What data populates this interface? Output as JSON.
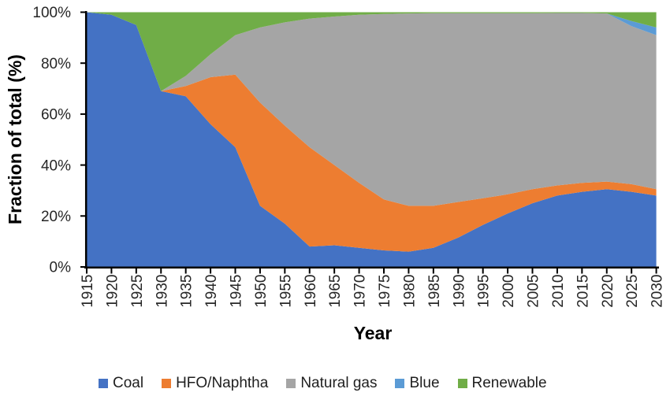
{
  "chart_data": {
    "type": "area",
    "stacked": true,
    "stacking": "percent",
    "title": "",
    "xlabel": "Year",
    "ylabel": "Fraction of total (%)",
    "ylim": [
      0,
      100
    ],
    "grid": false,
    "legend_position": "bottom",
    "axis_color": "#000000",
    "tick_label_color": "#262626",
    "years": [
      1915,
      1920,
      1925,
      1930,
      1935,
      1940,
      1945,
      1950,
      1955,
      1960,
      1965,
      1970,
      1975,
      1980,
      1985,
      1990,
      1995,
      2000,
      2005,
      2010,
      2015,
      2020,
      2025,
      2030
    ],
    "x_tick_labels": [
      "1915",
      "1920",
      "1925",
      "1930",
      "1935",
      "1940",
      "1945",
      "1950",
      "1955",
      "1960",
      "1965",
      "1970",
      "1975",
      "1980",
      "1985",
      "1990",
      "1995",
      "2000",
      "2005",
      "2010",
      "2015",
      "2020",
      "2025",
      "2030"
    ],
    "y_tick_labels": [
      "0%",
      "20%",
      "40%",
      "60%",
      "80%",
      "100%"
    ],
    "y_tick_values": [
      0,
      20,
      40,
      60,
      80,
      100
    ],
    "series": [
      {
        "name": "Coal",
        "color": "#4472C4",
        "values": [
          100,
          99,
          95,
          69,
          67,
          56,
          47,
          24,
          17,
          8,
          8.5,
          7.5,
          6.5,
          6,
          7.5,
          11.5,
          16.5,
          21,
          25,
          28,
          29.5,
          30.5,
          29.5,
          28
        ]
      },
      {
        "name": "HFO/Naphtha",
        "color": "#ED7D31",
        "values": [
          0,
          0,
          0,
          0,
          4,
          18.5,
          28.5,
          40.5,
          38.5,
          39,
          31.5,
          25.5,
          20,
          18,
          16.5,
          14,
          10.5,
          7.5,
          5.5,
          4,
          3.5,
          3,
          3,
          2.5
        ]
      },
      {
        "name": "Natural gas",
        "color": "#A5A5A5",
        "values": [
          0,
          0,
          0,
          0,
          4,
          9,
          15.5,
          29.5,
          40.5,
          50.5,
          58.3,
          66,
          72.8,
          75.5,
          75.6,
          74.1,
          72.6,
          71.1,
          69.1,
          67.7,
          66.7,
          66,
          62,
          60.5
        ]
      },
      {
        "name": "Blue",
        "color": "#5B9BD5",
        "values": [
          0,
          0,
          0,
          0,
          0,
          0,
          0,
          0,
          0,
          0,
          0,
          0,
          0,
          0,
          0,
          0,
          0,
          0,
          0,
          0,
          0,
          0,
          2,
          3
        ]
      },
      {
        "name": "Renewable",
        "color": "#70AD47",
        "values": [
          0,
          1,
          5,
          31,
          25,
          16.5,
          9,
          6,
          4,
          2.5,
          1.7,
          1,
          0.7,
          0.5,
          0.4,
          0.4,
          0.4,
          0.4,
          0.4,
          0.3,
          0.3,
          0.5,
          3.5,
          6
        ]
      }
    ]
  }
}
